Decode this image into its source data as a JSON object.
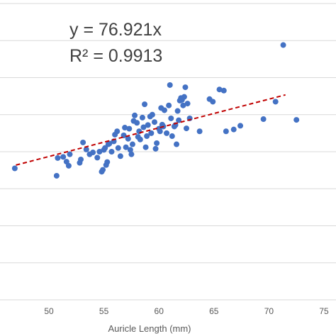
{
  "chart_data": {
    "type": "scatter",
    "title": "",
    "xlabel": "Auricle Length (mm)",
    "ylabel": "",
    "xlim": [
      45,
      75
    ],
    "x_ticks": [
      50,
      55,
      60,
      65,
      70,
      75
    ],
    "ylim": [
      0,
      8
    ],
    "y_gridlines": [
      1,
      2,
      3,
      4,
      5,
      6,
      7,
      8
    ],
    "grid": "horizontal",
    "legend": "none",
    "marker_color": "#4472C4",
    "trendline": {
      "type": "linear-through-origin",
      "style": "dashed",
      "color": "#C00000",
      "x_range": [
        47,
        71.5
      ],
      "equation": "y = 76.921x",
      "r_squared": "R² = 0.9913"
    },
    "points": [
      [
        46.9,
        3.55
      ],
      [
        50.7,
        3.35
      ],
      [
        50.8,
        3.83
      ],
      [
        51.3,
        3.86
      ],
      [
        51.6,
        3.73
      ],
      [
        51.8,
        3.62
      ],
      [
        51.9,
        3.93
      ],
      [
        52.8,
        3.7
      ],
      [
        52.9,
        3.79
      ],
      [
        53.1,
        4.25
      ],
      [
        53.4,
        4.06
      ],
      [
        53.7,
        3.93
      ],
      [
        54.0,
        3.98
      ],
      [
        54.4,
        3.84
      ],
      [
        54.6,
        4.0
      ],
      [
        54.8,
        3.46
      ],
      [
        54.9,
        3.51
      ],
      [
        55.0,
        4.05
      ],
      [
        55.1,
        4.1
      ],
      [
        55.2,
        3.64
      ],
      [
        55.3,
        3.72
      ],
      [
        55.4,
        4.2
      ],
      [
        55.5,
        4.22
      ],
      [
        55.7,
        4.0
      ],
      [
        55.9,
        4.28
      ],
      [
        56.0,
        4.46
      ],
      [
        56.2,
        4.55
      ],
      [
        56.3,
        4.1
      ],
      [
        56.5,
        3.88
      ],
      [
        56.8,
        4.44
      ],
      [
        56.9,
        4.65
      ],
      [
        57.0,
        4.12
      ],
      [
        57.2,
        4.35
      ],
      [
        57.3,
        4.62
      ],
      [
        57.4,
        4.05
      ],
      [
        57.5,
        3.93
      ],
      [
        57.6,
        4.2
      ],
      [
        57.7,
        4.83
      ],
      [
        57.8,
        4.98
      ],
      [
        58.0,
        4.78
      ],
      [
        58.1,
        4.4
      ],
      [
        58.2,
        4.55
      ],
      [
        58.3,
        4.33
      ],
      [
        58.5,
        4.92
      ],
      [
        58.6,
        4.66
      ],
      [
        58.7,
        5.28
      ],
      [
        58.8,
        4.12
      ],
      [
        58.9,
        4.42
      ],
      [
        59.0,
        4.72
      ],
      [
        59.2,
        4.95
      ],
      [
        59.3,
        4.5
      ],
      [
        59.4,
        5.0
      ],
      [
        59.6,
        4.8
      ],
      [
        59.7,
        4.08
      ],
      [
        59.8,
        4.23
      ],
      [
        60.0,
        4.62
      ],
      [
        60.1,
        4.55
      ],
      [
        60.2,
        5.18
      ],
      [
        60.3,
        4.73
      ],
      [
        60.4,
        4.68
      ],
      [
        60.5,
        5.12
      ],
      [
        60.7,
        4.5
      ],
      [
        60.9,
        5.25
      ],
      [
        61.0,
        5.8
      ],
      [
        61.1,
        4.9
      ],
      [
        61.2,
        4.42
      ],
      [
        61.4,
        4.68
      ],
      [
        61.5,
        4.72
      ],
      [
        61.6,
        4.2
      ],
      [
        61.7,
        5.1
      ],
      [
        61.8,
        4.85
      ],
      [
        61.9,
        5.38
      ],
      [
        62.0,
        5.45
      ],
      [
        62.1,
        5.4
      ],
      [
        62.2,
        5.25
      ],
      [
        62.3,
        5.48
      ],
      [
        62.4,
        5.74
      ],
      [
        62.5,
        4.63
      ],
      [
        62.6,
        5.3
      ],
      [
        62.8,
        4.9
      ],
      [
        63.7,
        4.55
      ],
      [
        64.6,
        5.42
      ],
      [
        64.9,
        5.35
      ],
      [
        65.5,
        5.68
      ],
      [
        65.9,
        5.65
      ],
      [
        66.1,
        4.55
      ],
      [
        66.8,
        4.6
      ],
      [
        67.4,
        4.7
      ],
      [
        69.5,
        4.88
      ],
      [
        70.6,
        5.35
      ],
      [
        71.3,
        6.88
      ],
      [
        72.5,
        4.86
      ]
    ]
  }
}
